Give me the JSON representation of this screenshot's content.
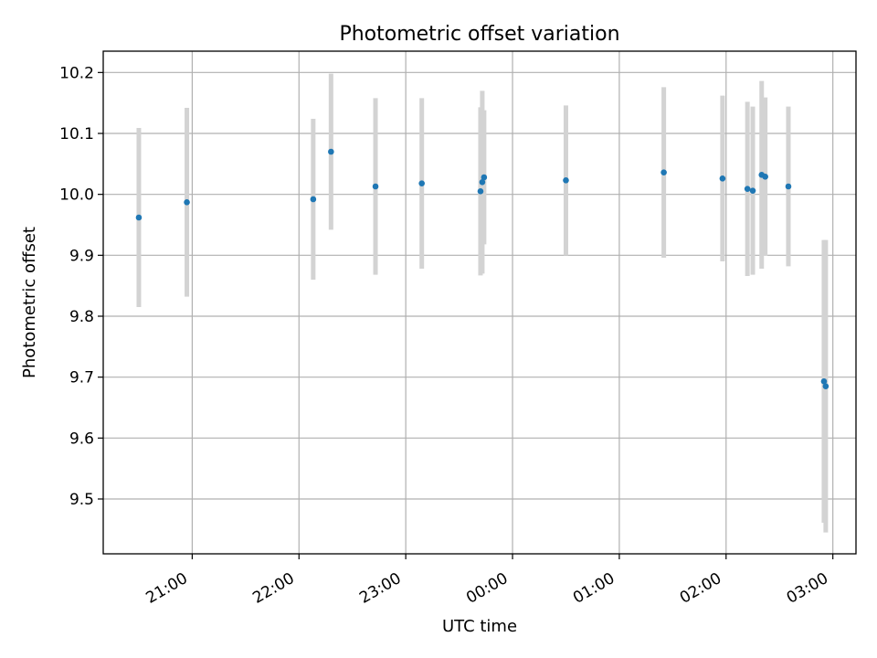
{
  "chart_data": {
    "type": "scatter",
    "title": "Photometric offset variation",
    "xlabel": "UTC time",
    "ylabel": "Photometric offset",
    "x_axis_type": "time",
    "xlim": [
      "20:10",
      "03:13"
    ],
    "ylim": [
      9.41,
      10.235
    ],
    "x_ticks": [
      "21:00",
      "22:00",
      "23:00",
      "00:00",
      "01:00",
      "02:00",
      "03:00"
    ],
    "y_ticks": [
      9.5,
      9.6,
      9.7,
      9.8,
      9.9,
      10.0,
      10.1,
      10.2
    ],
    "grid": true,
    "colors": {
      "point": "#1f77b4",
      "errorbar": "#d3d3d3"
    },
    "points": [
      {
        "time": "20:30",
        "y": 9.962,
        "err_low": 0.147,
        "err_high": 0.147
      },
      {
        "time": "20:57",
        "y": 9.987,
        "err_low": 0.155,
        "err_high": 0.155
      },
      {
        "time": "22:08",
        "y": 9.992,
        "err_low": 0.132,
        "err_high": 0.132
      },
      {
        "time": "22:18",
        "y": 10.07,
        "err_low": 0.128,
        "err_high": 0.128
      },
      {
        "time": "22:43",
        "y": 10.013,
        "err_low": 0.145,
        "err_high": 0.145
      },
      {
        "time": "23:09",
        "y": 10.018,
        "err_low": 0.14,
        "err_high": 0.14
      },
      {
        "time": "23:42",
        "y": 10.005,
        "err_low": 0.138,
        "err_high": 0.138
      },
      {
        "time": "23:43",
        "y": 10.02,
        "err_low": 0.15,
        "err_high": 0.15
      },
      {
        "time": "23:44",
        "y": 10.028,
        "err_low": 0.11,
        "err_high": 0.11
      },
      {
        "time": "00:30",
        "y": 10.023,
        "err_low": 0.123,
        "err_high": 0.123
      },
      {
        "time": "01:25",
        "y": 10.036,
        "err_low": 0.14,
        "err_high": 0.14
      },
      {
        "time": "01:58",
        "y": 10.026,
        "err_low": 0.136,
        "err_high": 0.136
      },
      {
        "time": "02:12",
        "y": 10.009,
        "err_low": 0.143,
        "err_high": 0.143
      },
      {
        "time": "02:15",
        "y": 10.006,
        "err_low": 0.138,
        "err_high": 0.138
      },
      {
        "time": "02:20",
        "y": 10.032,
        "err_low": 0.154,
        "err_high": 0.154
      },
      {
        "time": "02:22",
        "y": 10.029,
        "err_low": 0.13,
        "err_high": 0.13
      },
      {
        "time": "02:35",
        "y": 10.013,
        "err_low": 0.131,
        "err_high": 0.131
      },
      {
        "time": "02:55",
        "y": 9.693,
        "err_low": 0.232,
        "err_high": 0.232
      },
      {
        "time": "02:56",
        "y": 9.685,
        "err_low": 0.24,
        "err_high": 0.24
      }
    ]
  }
}
